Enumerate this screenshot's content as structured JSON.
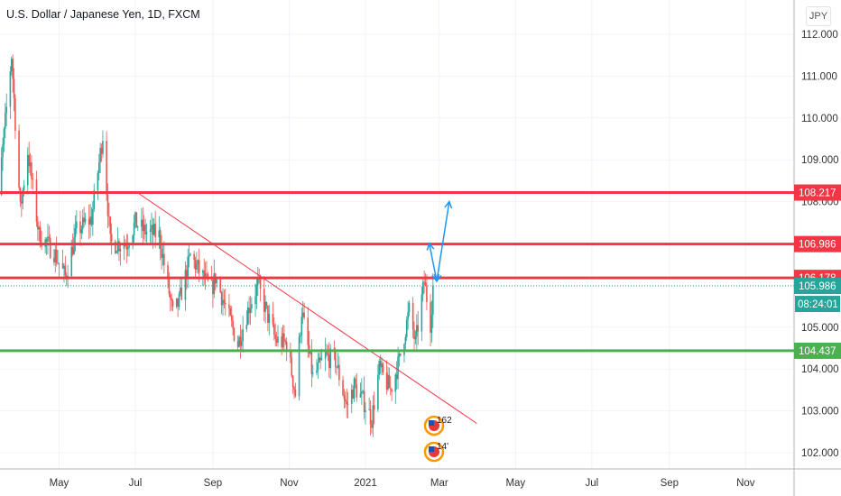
{
  "header": {
    "title": "U.S. Dollar / Japanese Yen, 1D, FXCM",
    "currency_button": "JPY"
  },
  "chart_data": {
    "type": "candlestick",
    "title": "U.S. Dollar / Japanese Yen, 1D, FXCM",
    "ylim": [
      101.6,
      112.4
    ],
    "y_ticks": [
      "112.000",
      "111.000",
      "110.000",
      "109.000",
      "108.000",
      "105.000",
      "104.000",
      "103.000",
      "102.000"
    ],
    "x_ticks": [
      {
        "label": "May",
        "date": "2020-05-01"
      },
      {
        "label": "Jul",
        "date": "2020-07-01"
      },
      {
        "label": "Sep",
        "date": "2020-09-01"
      },
      {
        "label": "Nov",
        "date": "2020-11-01"
      },
      {
        "label": "2021",
        "date": "2021-01-01"
      },
      {
        "label": "Mar",
        "date": "2021-03-01"
      },
      {
        "label": "May",
        "date": "2021-05-01"
      },
      {
        "label": "Jul",
        "date": "2021-07-01"
      },
      {
        "label": "Sep",
        "date": "2021-09-01"
      },
      {
        "label": "Nov",
        "date": "2021-11-01"
      }
    ],
    "price_path": [
      [
        "2020-03-09",
        104.5
      ],
      [
        "2020-03-13",
        108.0
      ],
      [
        "2020-03-24",
        111.5
      ],
      [
        "2020-03-31",
        107.8
      ],
      [
        "2020-04-06",
        109.2
      ],
      [
        "2020-04-15",
        107.2
      ],
      [
        "2020-04-27",
        106.8
      ],
      [
        "2020-05-06",
        106.2
      ],
      [
        "2020-05-15",
        107.3
      ],
      [
        "2020-05-27",
        107.6
      ],
      [
        "2020-06-05",
        109.6
      ],
      [
        "2020-06-11",
        107.0
      ],
      [
        "2020-06-24",
        107.0
      ],
      [
        "2020-07-01",
        107.5
      ],
      [
        "2020-07-08",
        107.3
      ],
      [
        "2020-07-20",
        107.2
      ],
      [
        "2020-07-31",
        105.3
      ],
      [
        "2020-08-05",
        105.6
      ],
      [
        "2020-08-14",
        106.7
      ],
      [
        "2020-08-26",
        106.1
      ],
      [
        "2020-08-31",
        105.9
      ],
      [
        "2020-09-03",
        106.2
      ],
      [
        "2020-09-21",
        104.6
      ],
      [
        "2020-09-30",
        105.5
      ],
      [
        "2020-10-07",
        106.0
      ],
      [
        "2020-10-21",
        104.7
      ],
      [
        "2020-10-30",
        104.6
      ],
      [
        "2020-11-06",
        103.4
      ],
      [
        "2020-11-11",
        105.4
      ],
      [
        "2020-11-20",
        103.8
      ],
      [
        "2020-11-30",
        104.3
      ],
      [
        "2020-12-08",
        104.2
      ],
      [
        "2020-12-17",
        103.1
      ],
      [
        "2020-12-23",
        103.6
      ],
      [
        "2020-12-31",
        103.2
      ],
      [
        "2021-01-06",
        102.8
      ],
      [
        "2021-01-12",
        104.0
      ],
      [
        "2021-01-21",
        103.5
      ],
      [
        "2021-01-28",
        104.2
      ],
      [
        "2021-02-05",
        105.4
      ],
      [
        "2021-02-10",
        104.6
      ],
      [
        "2021-02-17",
        106.1
      ],
      [
        "2021-02-22",
        105.1
      ],
      [
        "2021-02-24",
        105.986
      ]
    ],
    "last_price": "105.986",
    "countdown": "08:24:01",
    "levels": [
      {
        "price": "108.217",
        "color": "#f23645"
      },
      {
        "price": "106.986",
        "color": "#f23645"
      },
      {
        "price": "106.178",
        "color": "#f23645"
      },
      {
        "price": "104.437",
        "color": "#4caf50"
      }
    ],
    "trendline": {
      "from": [
        "2020-07-01",
        108.25
      ],
      "to": [
        "2021-03-31",
        102.7
      ],
      "color": "#f23645"
    },
    "arrows": [
      {
        "from": [
          "2021-02-21",
          107.0
        ],
        "to": [
          "2021-02-27",
          106.1
        ]
      },
      {
        "from": [
          "2021-02-27",
          106.1
        ],
        "to": [
          "2021-03-09",
          108.0
        ]
      }
    ],
    "events": [
      {
        "label": "162",
        "icon": "us-flag-icon"
      },
      {
        "label": "14'",
        "icon": "us-flag-icon"
      }
    ],
    "colors": {
      "up": "#26a69a",
      "down": "#ef5350",
      "last": "#26a69a",
      "arrow": "#2196f3"
    }
  }
}
